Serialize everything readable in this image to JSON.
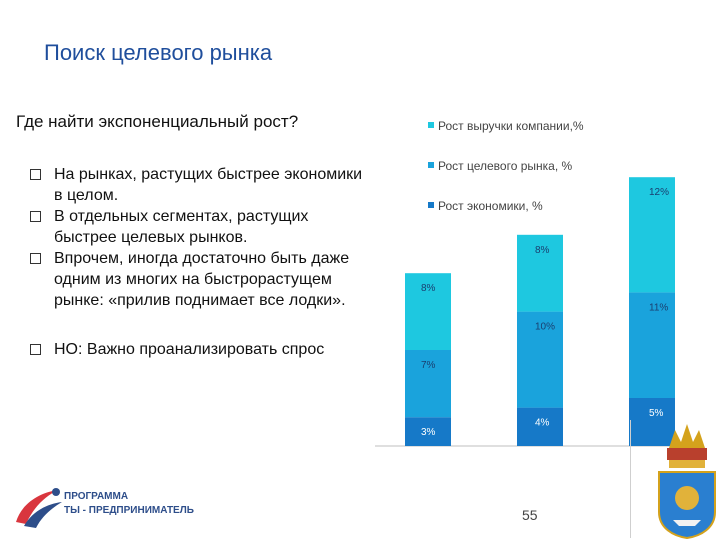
{
  "title": "Поиск целевого рынка",
  "subtitle": "Где найти экспоненциальный рост?",
  "bullets": [
    "На рынках, растущих быстрее экономики в целом.",
    "В отдельных сегментах, растущих быстрее целевых рынков.",
    "Впрочем, иногда достаточно быть даже одним из многих на быстрорастущем рынке: «прилив поднимает все лодки».",
    "НО: Важно проанализировать спрос"
  ],
  "page_number": "55",
  "logo": {
    "line1": "ПРОГРАММА",
    "line2": "ТЫ - ПРЕДПРИНИМАТЕЛЬ"
  },
  "colors": {
    "title": "#1f4e9c",
    "economy": "#1679c8",
    "target": "#1aa3dc",
    "revenue": "#1ec8e0"
  },
  "chart_data": {
    "type": "bar",
    "stacked": true,
    "categories": [
      "",
      "",
      ""
    ],
    "series": [
      {
        "name": "Рост экономики, %",
        "values": [
          3,
          4,
          5
        ],
        "labels": [
          "3%",
          "4%",
          "5%"
        ],
        "color": "#1679c8"
      },
      {
        "name": "Рост целевого рынка, %",
        "values": [
          7,
          10,
          11
        ],
        "labels": [
          "7%",
          "10%",
          "11%"
        ],
        "color": "#1aa3dc"
      },
      {
        "name": "Рост выручки компании,%",
        "values": [
          8,
          8,
          12
        ],
        "labels": [
          "8%",
          "8%",
          "12%"
        ],
        "color": "#1ec8e0"
      }
    ],
    "legend_position": "top-right",
    "grid": false
  }
}
